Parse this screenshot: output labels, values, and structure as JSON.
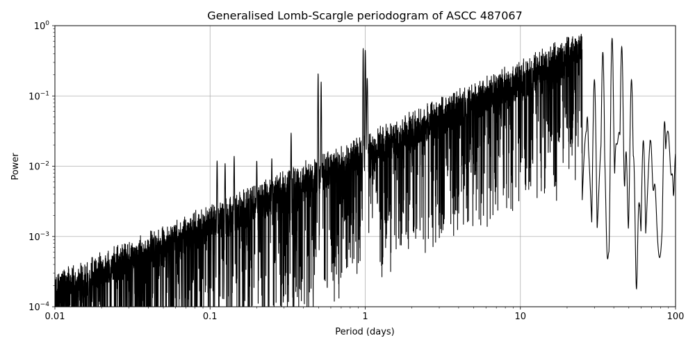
{
  "chart_data": {
    "type": "line",
    "title": "Generalised Lomb-Scargle periodogram of ASCC 487067",
    "xlabel": "Period (days)",
    "ylabel": "Power",
    "xscale": "log",
    "yscale": "log",
    "xlim": [
      0.01,
      100
    ],
    "ylim": [
      0.0001,
      1
    ],
    "grid": true,
    "x_ticks": [
      {
        "value": 0.01,
        "label": "0.01"
      },
      {
        "value": 0.1,
        "label": "0.1"
      },
      {
        "value": 1,
        "label": "1"
      },
      {
        "value": 10,
        "label": "10"
      },
      {
        "value": 100,
        "label": "100"
      }
    ],
    "y_ticks": [
      {
        "value": 0.0001,
        "base": "10",
        "exp": "−4"
      },
      {
        "value": 0.001,
        "base": "10",
        "exp": "−3"
      },
      {
        "value": 0.01,
        "base": "10",
        "exp": "−2"
      },
      {
        "value": 0.1,
        "base": "10",
        "exp": "−1"
      },
      {
        "value": 1,
        "base": "10",
        "exp": "0"
      }
    ],
    "series": [
      {
        "color": "#000000",
        "peaks": [
          {
            "period": 0.111,
            "power": 0.012
          },
          {
            "period": 0.125,
            "power": 0.011
          },
          {
            "period": 0.143,
            "power": 0.014
          },
          {
            "period": 0.2,
            "power": 0.012
          },
          {
            "period": 0.25,
            "power": 0.013
          },
          {
            "period": 0.333,
            "power": 0.03
          },
          {
            "period": 0.497,
            "power": 0.21
          },
          {
            "period": 0.52,
            "power": 0.16
          },
          {
            "period": 0.97,
            "power": 0.48
          },
          {
            "period": 1.0,
            "power": 0.45
          },
          {
            "period": 1.03,
            "power": 0.18
          },
          {
            "period": 1.5,
            "power": 0.025
          },
          {
            "period": 2.0,
            "power": 0.02
          },
          {
            "period": 7.5,
            "power": 0.08
          },
          {
            "period": 10.5,
            "power": 0.027
          },
          {
            "period": 12.5,
            "power": 0.02
          },
          {
            "period": 16.0,
            "power": 0.028
          },
          {
            "period": 20.0,
            "power": 0.04
          },
          {
            "period": 22.0,
            "power": 0.055
          },
          {
            "period": 27.0,
            "power": 0.05
          },
          {
            "period": 30.0,
            "power": 0.17
          },
          {
            "period": 34.0,
            "power": 0.42
          },
          {
            "period": 39.0,
            "power": 0.66
          },
          {
            "period": 45.0,
            "power": 0.5
          },
          {
            "period": 52.0,
            "power": 0.17
          },
          {
            "period": 62.0,
            "power": 0.023
          },
          {
            "period": 85.0,
            "power": 0.043
          },
          {
            "period": 100.0,
            "power": 0.015
          }
        ],
        "troughs": [
          {
            "period": 36.5,
            "power": 0.00048
          },
          {
            "period": 41.5,
            "power": 0.021
          },
          {
            "period": 48.0,
            "power": 0.016
          },
          {
            "period": 56.0,
            "power": 0.00018
          },
          {
            "period": 72.0,
            "power": 0.0045
          },
          {
            "period": 95.0,
            "power": 0.0078
          }
        ]
      }
    ]
  }
}
